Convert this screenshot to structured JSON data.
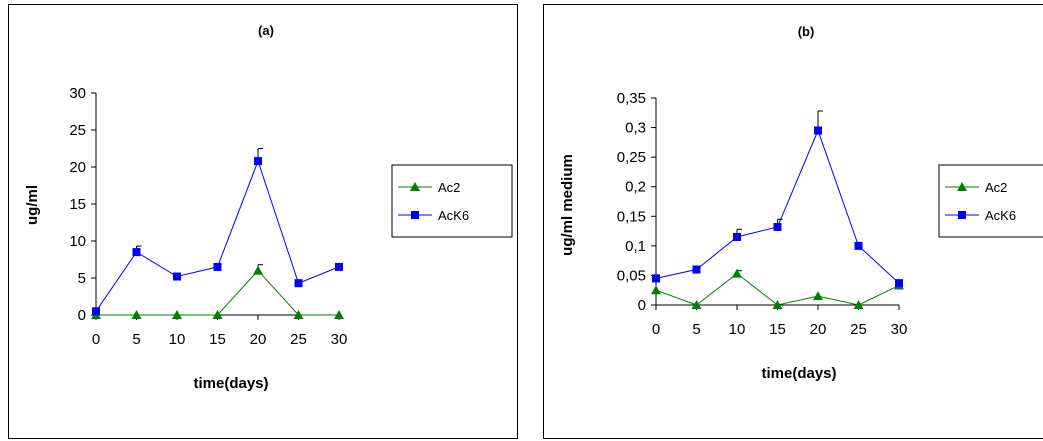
{
  "chart_data": [
    {
      "type": "line",
      "title": "(a)",
      "xlabel": "time(days)",
      "ylabel": "ug/ml",
      "x": [
        0,
        5,
        10,
        15,
        20,
        25,
        30
      ],
      "xticks": [
        "0",
        "5",
        "10",
        "15",
        "20",
        "25",
        "30"
      ],
      "yticks": [
        "0",
        "5",
        "10",
        "15",
        "20",
        "25",
        "30"
      ],
      "ylim": [
        0,
        30
      ],
      "grid": false,
      "legend_position": "right",
      "series": [
        {
          "name": "Ac2",
          "color": "#008000",
          "marker": "triangle",
          "values": [
            0,
            0,
            0,
            0,
            6,
            0,
            0
          ],
          "error": [
            0,
            0,
            0,
            0,
            0.8,
            0,
            0
          ]
        },
        {
          "name": "AcK6",
          "color": "#0000ff",
          "marker": "square",
          "values": [
            0.5,
            8.5,
            5.2,
            6.5,
            20.8,
            4.3,
            6.5
          ],
          "error": [
            0,
            0.8,
            0,
            0,
            1.7,
            0,
            0
          ]
        }
      ]
    },
    {
      "type": "line",
      "title": "(b)",
      "xlabel": "time(days)",
      "ylabel": "ug/ml medium",
      "x": [
        0,
        5,
        10,
        15,
        20,
        25,
        30
      ],
      "xticks": [
        "0",
        "5",
        "10",
        "15",
        "20",
        "25",
        "30"
      ],
      "yticks": [
        "0",
        "0,05",
        "0,1",
        "0,15",
        "0,2",
        "0,25",
        "0,3",
        "0,35"
      ],
      "ylim": [
        0,
        0.35
      ],
      "grid": false,
      "legend_position": "right",
      "series": [
        {
          "name": "Ac2",
          "color": "#008000",
          "marker": "triangle",
          "values": [
            0.025,
            0,
            0.053,
            0,
            0.015,
            0,
            0.033
          ],
          "error": [
            0,
            0,
            0.005,
            0,
            0,
            0,
            0
          ]
        },
        {
          "name": "AcK6",
          "color": "#0000ff",
          "marker": "square",
          "values": [
            0.045,
            0.06,
            0.115,
            0.132,
            0.295,
            0.1,
            0.037
          ],
          "error": [
            0,
            0,
            0.013,
            0.013,
            0.033,
            0,
            0
          ]
        }
      ]
    }
  ]
}
